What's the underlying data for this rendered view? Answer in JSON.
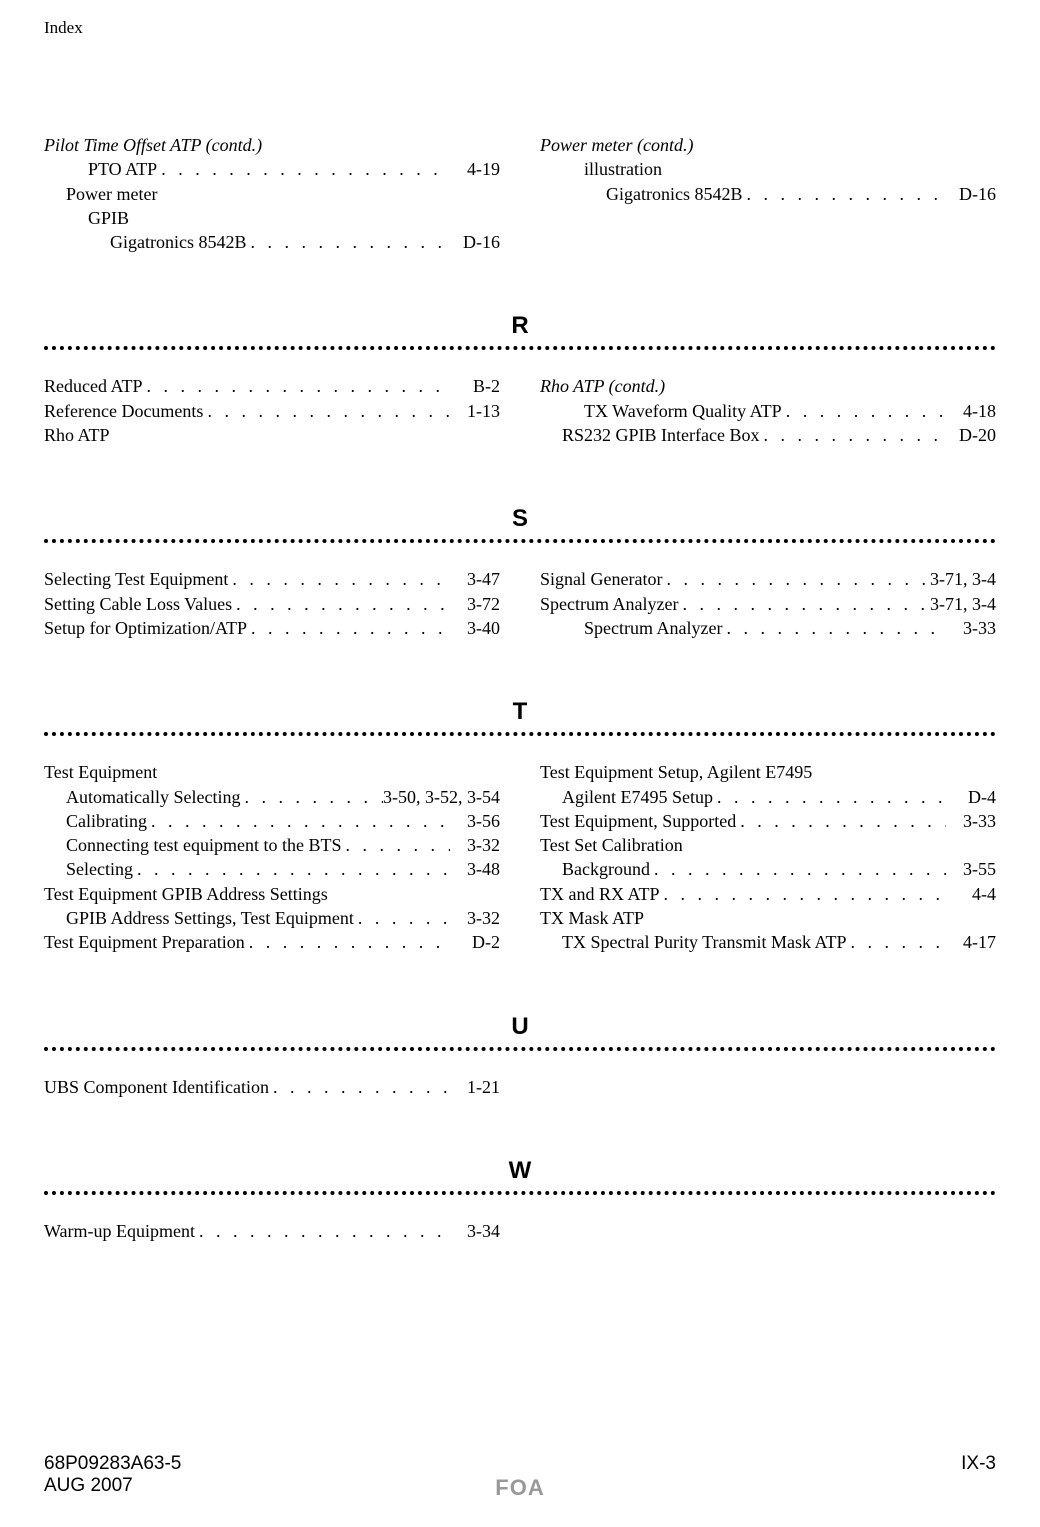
{
  "header": "Index",
  "dots": ". . . . . . . . . . . . . . . . . . . . . . . . . . . . . . . . . . . . . . . .",
  "top": {
    "left": [
      {
        "label": "Pilot Time Offset ATP (contd.)",
        "indent": 0,
        "italic": true
      },
      {
        "label": "PTO ATP",
        "page": "4-19",
        "indent": 2
      },
      {
        "label": "Power meter",
        "indent": 1
      },
      {
        "label": "GPIB",
        "indent": 2
      },
      {
        "label": "Gigatronics 8542B",
        "page": "D-16",
        "indent": 3
      }
    ],
    "right": [
      {
        "label": "Power meter (contd.)",
        "indent": 0,
        "italic": true
      },
      {
        "label": "illustration",
        "indent": 2
      },
      {
        "label": "Gigatronics 8542B",
        "page": "D-16",
        "indent": 3
      }
    ]
  },
  "sections": [
    {
      "letter": "R",
      "left": [
        {
          "label": "Reduced ATP",
          "page": "B-2",
          "indent": 0
        },
        {
          "label": "Reference Documents",
          "page": "1-13",
          "indent": 0
        },
        {
          "label": "Rho ATP",
          "indent": 0
        }
      ],
      "right": [
        {
          "label": "Rho ATP (contd.)",
          "indent": 0,
          "italic": true
        },
        {
          "label": "TX Waveform Quality ATP",
          "page": "4-18",
          "indent": 2
        },
        {
          "label": "RS232 GPIB Interface Box",
          "page": "D-20",
          "indent": 1
        }
      ]
    },
    {
      "letter": "S",
      "left": [
        {
          "label": "Selecting Test Equipment",
          "page": "3-47",
          "indent": 0
        },
        {
          "label": "Setting Cable Loss Values",
          "page": "3-72",
          "indent": 0
        },
        {
          "label": "Setup for Optimization/ATP",
          "page": "3-40",
          "indent": 0
        }
      ],
      "right": [
        {
          "label": "Signal Generator",
          "page": "3-71, 3-4",
          "indent": 0
        },
        {
          "label": "Spectrum Analyzer",
          "page": "3-71, 3-4",
          "indent": 0
        },
        {
          "label": "Spectrum Analyzer",
          "page": "3-33",
          "indent": 2
        }
      ]
    },
    {
      "letter": "T",
      "left": [
        {
          "label": "Test Equipment",
          "indent": 0
        },
        {
          "label": "Automatically Selecting",
          "page": "3-50, 3-52, 3-54",
          "indent": 1
        },
        {
          "label": "Calibrating",
          "page": "3-56",
          "indent": 1
        },
        {
          "label": "Connecting test equipment to the BTS",
          "page": "3-32",
          "indent": 1
        },
        {
          "label": "Selecting",
          "page": "3-48",
          "indent": 1
        },
        {
          "label": "Test Equipment GPIB Address Settings",
          "indent": 0
        },
        {
          "label": "GPIB Address Settings, Test Equip­ment",
          "page": "3-32",
          "indent": 1,
          "wrap": true
        },
        {
          "label": "Test Equipment Preparation",
          "page": "D-2",
          "indent": 0
        }
      ],
      "right": [
        {
          "label": "Test Equipment Setup, Agilent E7495",
          "indent": 0
        },
        {
          "label": "Agilent E7495 Setup",
          "page": "D-4",
          "indent": 1
        },
        {
          "label": "Test Equipment, Supported",
          "page": "3-33",
          "indent": 0
        },
        {
          "label": "Test Set Calibration",
          "indent": 0
        },
        {
          "label": "Background",
          "page": "3-55",
          "indent": 1
        },
        {
          "label": "TX and RX ATP",
          "page": "4-4",
          "indent": 0
        },
        {
          "label": "TX Mask ATP",
          "indent": 0
        },
        {
          "label": "TX Spectral Purity Transmit Mask ATP",
          "page": "4-17",
          "indent": 1
        }
      ]
    },
    {
      "letter": "U",
      "left": [
        {
          "label": "UBS Component Identification",
          "page": "1-21",
          "indent": 0
        }
      ],
      "right": []
    },
    {
      "letter": "W",
      "left": [
        {
          "label": "Warm-up Equipment",
          "page": "3-34",
          "indent": 0
        }
      ],
      "right": []
    }
  ],
  "footer": {
    "left1": "68P09283A63-5",
    "left2": "AUG 2007",
    "center": "FOA",
    "right": "IX-3"
  }
}
